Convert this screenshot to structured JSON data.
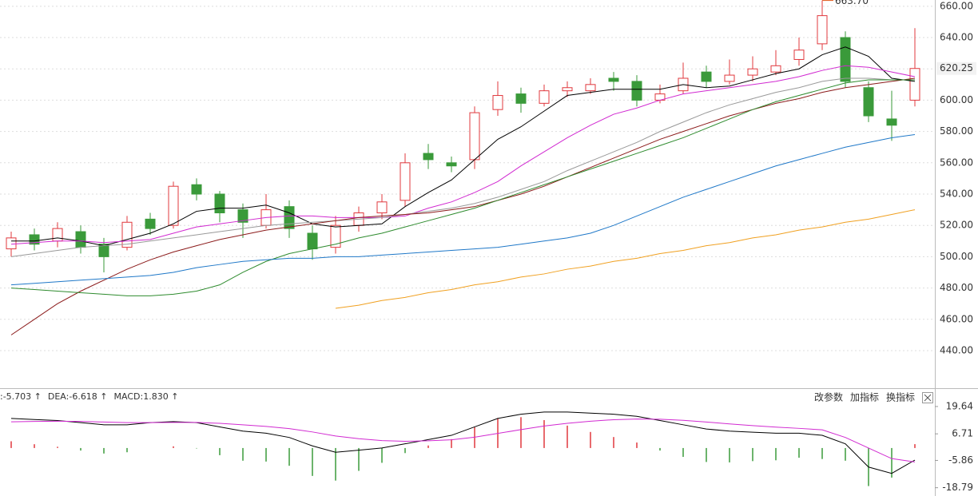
{
  "chart_data": [
    {
      "type": "candlestick",
      "open": [
        505,
        514,
        510,
        516,
        508,
        506,
        524,
        520,
        546,
        540,
        530,
        520,
        532,
        515,
        506,
        520,
        528,
        536,
        566,
        560,
        562,
        594,
        604,
        598,
        606,
        606,
        614,
        612,
        600,
        606,
        618,
        612,
        616,
        618,
        626,
        636,
        640,
        608,
        588,
        600
      ],
      "high": [
        516,
        518,
        522,
        520,
        512,
        526,
        528,
        548,
        550,
        542,
        534,
        540,
        536,
        520,
        526,
        532,
        540,
        566,
        572,
        564,
        596,
        612,
        608,
        610,
        612,
        614,
        618,
        616,
        610,
        624,
        622,
        626,
        628,
        632,
        640,
        663.7,
        644,
        612,
        606,
        646
      ],
      "low": [
        500,
        504,
        506,
        502,
        490,
        504,
        514,
        518,
        536,
        522,
        512,
        518,
        512,
        498,
        502,
        516,
        524,
        532,
        556,
        554,
        556,
        590,
        592,
        596,
        602,
        604,
        606,
        596,
        598,
        604,
        608,
        610,
        612,
        616,
        622,
        632,
        608,
        586,
        574,
        596
      ],
      "close": [
        512,
        508,
        518,
        506,
        500,
        522,
        518,
        545,
        540,
        528,
        522,
        530,
        518,
        505,
        520,
        528,
        535,
        560,
        562,
        558,
        592,
        603,
        598,
        606,
        608,
        610,
        612,
        600,
        604,
        614,
        612,
        616,
        620,
        622,
        632,
        654,
        612,
        590,
        584,
        620.25
      ],
      "up_color": "#e0393e",
      "down_color": "#3a9a3a",
      "series": [
        {
          "color": "#000000",
          "values": [
            510,
            510,
            512,
            510,
            507,
            511,
            515,
            521,
            529,
            531,
            531,
            533,
            528,
            521,
            519,
            520,
            521,
            532,
            541,
            549,
            562,
            575,
            583,
            593,
            603,
            605,
            607,
            607,
            607,
            610,
            608,
            609,
            613,
            617,
            620,
            629,
            634,
            628,
            614,
            612
          ]
        },
        {
          "color": "#d12ad1",
          "values": [
            508,
            509,
            510,
            510,
            509,
            510,
            511,
            515,
            519,
            521,
            523,
            525,
            526,
            526,
            525,
            525,
            525,
            526,
            531,
            535,
            541,
            548,
            558,
            567,
            576,
            584,
            591,
            595,
            600,
            604,
            606,
            608,
            610,
            612,
            615,
            619,
            622,
            621,
            618,
            615
          ]
        },
        {
          "color": "#999999",
          "values": [
            500,
            502,
            504,
            506,
            507,
            508,
            510,
            512,
            514,
            516,
            518,
            520,
            521,
            522,
            523,
            524,
            525,
            527,
            529,
            531,
            534,
            538,
            543,
            548,
            555,
            561,
            567,
            573,
            580,
            586,
            592,
            597,
            601,
            605,
            608,
            612,
            614,
            614,
            613,
            613
          ]
        },
        {
          "color": "#8b1a1a",
          "values": [
            450,
            460,
            470,
            478,
            485,
            492,
            498,
            503,
            507,
            511,
            514,
            517,
            519,
            521,
            523,
            525,
            526,
            527,
            528,
            530,
            532,
            536,
            540,
            545,
            551,
            557,
            563,
            569,
            575,
            580,
            585,
            590,
            594,
            598,
            601,
            605,
            608,
            610,
            612,
            614
          ]
        },
        {
          "color": "#2e8b2e",
          "values": [
            480,
            479,
            478,
            477,
            476,
            475,
            475,
            476,
            478,
            482,
            490,
            497,
            502,
            505,
            508,
            512,
            515,
            519,
            523,
            527,
            531,
            536,
            541,
            546,
            551,
            556,
            561,
            566,
            571,
            576,
            582,
            588,
            594,
            599,
            603,
            607,
            611,
            613,
            613,
            613
          ]
        },
        {
          "color": "#1f78c8",
          "values": [
            482,
            483,
            484,
            485,
            486,
            487,
            488,
            490,
            493,
            495,
            497,
            498,
            499,
            499,
            500,
            500,
            501,
            502,
            503,
            504,
            505,
            506,
            508,
            510,
            512,
            515,
            520,
            526,
            532,
            538,
            543,
            548,
            553,
            558,
            562,
            566,
            570,
            573,
            576,
            578
          ]
        },
        {
          "color": "#f0a020",
          "values": [
            null,
            null,
            null,
            null,
            null,
            null,
            null,
            null,
            null,
            null,
            null,
            null,
            null,
            null,
            467,
            469,
            472,
            474,
            477,
            479,
            482,
            484,
            487,
            489,
            492,
            494,
            497,
            499,
            502,
            504,
            507,
            509,
            512,
            514,
            517,
            519,
            522,
            524,
            527,
            530
          ]
        }
      ],
      "ylim": [
        416,
        664
      ],
      "yticks": [
        {
          "value": 440,
          "label": "440.00"
        },
        {
          "value": 460,
          "label": "460.00"
        },
        {
          "value": 480,
          "label": "480.00"
        },
        {
          "value": 500,
          "label": "500.00"
        },
        {
          "value": 520,
          "label": "520.00"
        },
        {
          "value": 540,
          "label": "540.00"
        },
        {
          "value": 560,
          "label": "560.00"
        },
        {
          "value": 580,
          "label": "580.00"
        },
        {
          "value": 600,
          "label": "600.00"
        },
        {
          "value": 620,
          "label": "620.00"
        },
        {
          "value": 640,
          "label": "640.00"
        },
        {
          "value": 660,
          "label": "660.00"
        }
      ],
      "max_label": {
        "value": 663.7,
        "label": "663.70",
        "color": "#e05a1a"
      },
      "grid": true
    },
    {
      "type": "macd",
      "legend": [
        {
          "text": ":-5.703 ↑",
          "color": "#000000"
        },
        {
          "text": "DEA:-6.618 ↑",
          "color": "#d12ad1"
        },
        {
          "text": "MACD:1.830 ↑",
          "color": "#666666"
        }
      ],
      "series": [
        {
          "color": "#000000",
          "values": [
            14,
            13.5,
            13,
            12,
            11,
            11,
            12,
            12.5,
            12,
            10,
            8,
            7,
            5,
            1,
            -2,
            -1,
            0,
            2,
            4,
            6,
            10,
            14,
            16,
            17,
            17,
            16.5,
            16,
            15,
            13,
            11,
            9,
            8,
            7.5,
            7,
            7,
            6,
            2,
            -9,
            -12,
            -5.703
          ]
        },
        {
          "color": "#d12ad1",
          "values": [
            12.4,
            12.6,
            12.7,
            12.6,
            12.3,
            12,
            12,
            12.1,
            12.1,
            11.7,
            11,
            10.2,
            9.2,
            7.6,
            5.7,
            4.4,
            3.5,
            3.2,
            3.4,
            3.9,
            5.1,
            6.9,
            8.7,
            10.4,
            11.7,
            12.7,
            13.4,
            13.7,
            13.6,
            13.1,
            12.3,
            11.4,
            10.6,
            9.9,
            9.3,
            8.6,
            5,
            0,
            -5,
            -6.618
          ]
        }
      ],
      "histogram": [
        3.2,
        1.8,
        0.6,
        -1.2,
        -2.6,
        -2,
        0,
        0.8,
        -0.2,
        -3.4,
        -6,
        -6.4,
        -8.4,
        -13.2,
        -15.4,
        -10.8,
        -7,
        -2.4,
        1.2,
        4.2,
        9.8,
        14.2,
        14.6,
        13.2,
        10.6,
        7.6,
        5.2,
        2.6,
        -1.2,
        -4.2,
        -6.6,
        -6.8,
        -6.2,
        -5.8,
        -4.6,
        -5.2,
        -6,
        -18,
        -14,
        1.83
      ],
      "up_color": "#e0393e",
      "down_color": "#3a9a3a",
      "ylim": [
        -22.7,
        26.8
      ],
      "yticks": [
        19.64,
        6.71,
        -5.86,
        -18.79
      ]
    }
  ],
  "toolbar": [
    "改参数",
    "加指标",
    "换指标"
  ]
}
